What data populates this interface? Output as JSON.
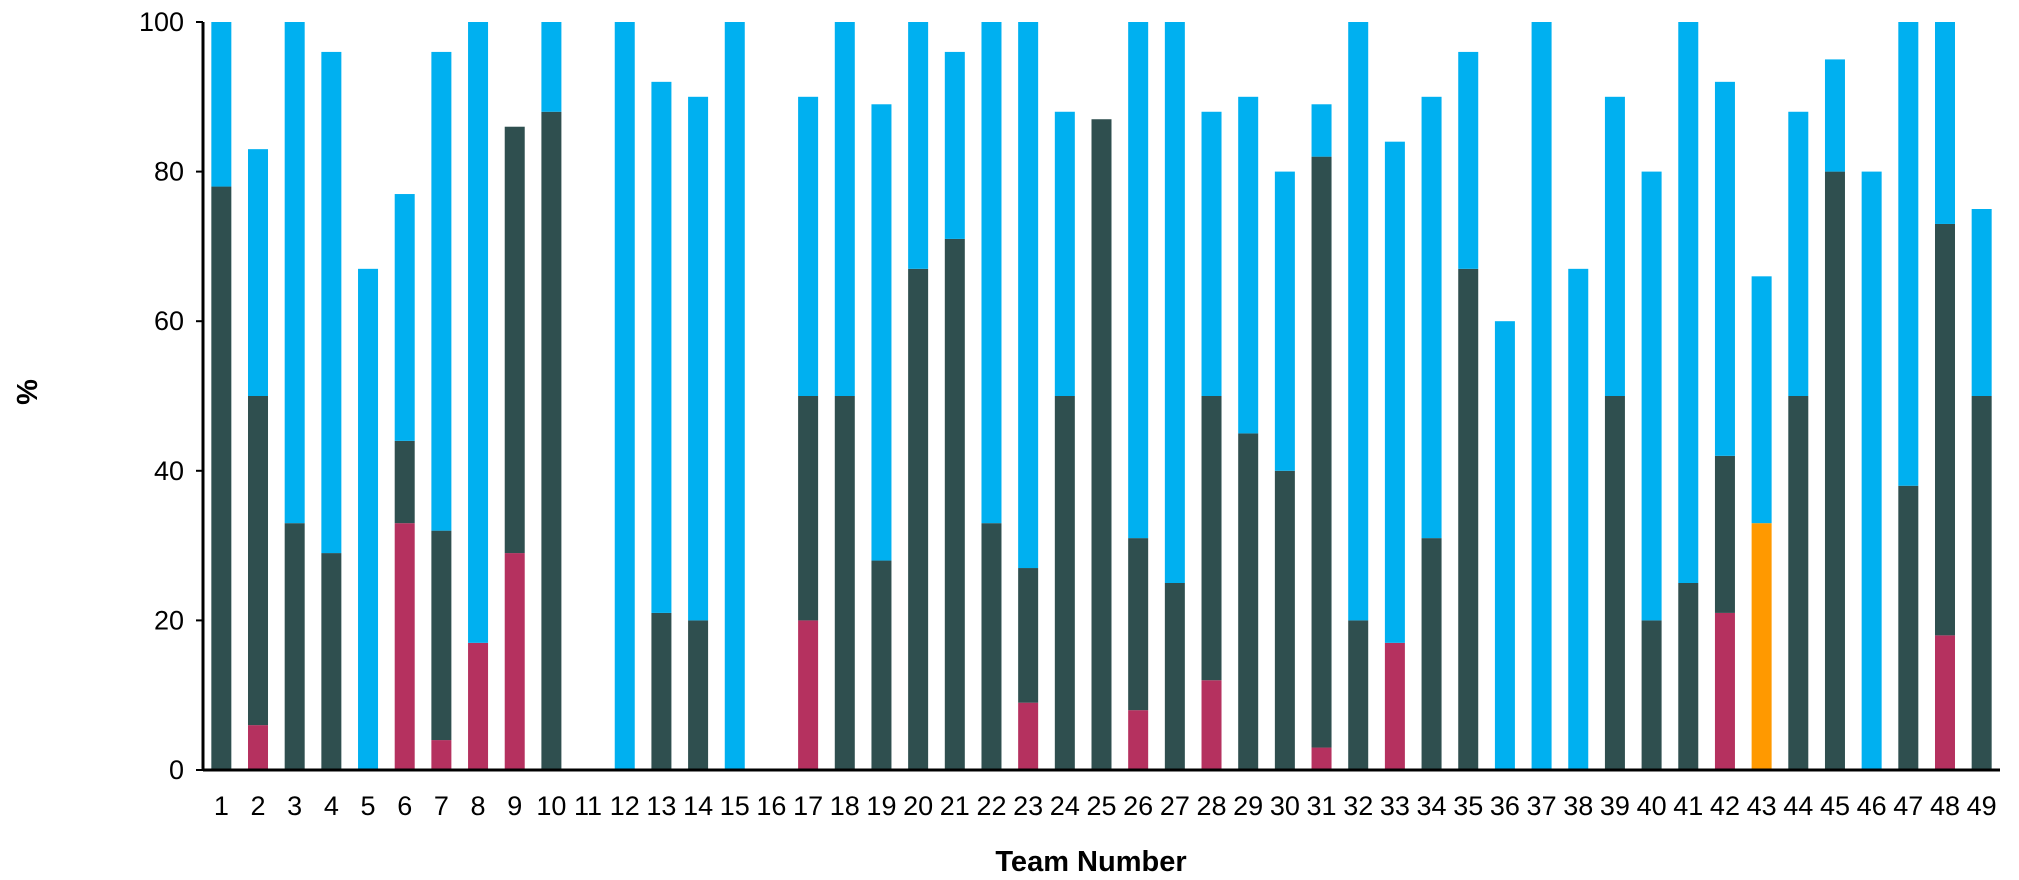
{
  "chart_data": {
    "type": "bar",
    "stacked": true,
    "xlabel": "Team Number",
    "ylabel": "%",
    "ylim": [
      0,
      100
    ],
    "yticks": [
      0,
      20,
      40,
      60,
      80,
      100
    ],
    "grid": false,
    "legend": "none",
    "categories": [
      "1",
      "2",
      "3",
      "4",
      "5",
      "6",
      "7",
      "8",
      "9",
      "10",
      "11",
      "12",
      "13",
      "14",
      "15",
      "16",
      "17",
      "18",
      "19",
      "20",
      "21",
      "22",
      "23",
      "24",
      "25",
      "26",
      "27",
      "28",
      "29",
      "30",
      "31",
      "32",
      "33",
      "34",
      "35",
      "36",
      "37",
      "38",
      "39",
      "40",
      "41",
      "42",
      "43",
      "44",
      "45",
      "46",
      "47",
      "48",
      "49"
    ],
    "series": [
      {
        "color": "#B5315F",
        "values": [
          0,
          6,
          0,
          0,
          0,
          33,
          4,
          17,
          29,
          0,
          0,
          0,
          0,
          0,
          0,
          0,
          20,
          0,
          0,
          0,
          0,
          0,
          9,
          0,
          0,
          8,
          0,
          12,
          0,
          0,
          3,
          0,
          17,
          0,
          0,
          0,
          0,
          0,
          0,
          0,
          0,
          21,
          0,
          0,
          0,
          0,
          0,
          18,
          0
        ]
      },
      {
        "color": "#FF9900",
        "values": [
          0,
          0,
          0,
          0,
          0,
          0,
          0,
          0,
          0,
          0,
          0,
          0,
          0,
          0,
          0,
          0,
          0,
          0,
          0,
          0,
          0,
          0,
          0,
          0,
          0,
          0,
          0,
          0,
          0,
          0,
          0,
          0,
          0,
          0,
          0,
          0,
          0,
          0,
          0,
          0,
          0,
          0,
          33,
          0,
          0,
          0,
          0,
          0,
          0
        ]
      },
      {
        "color": "#2F4F4F",
        "values": [
          78,
          44,
          33,
          29,
          0,
          11,
          28,
          0,
          57,
          88,
          0,
          0,
          21,
          20,
          0,
          0,
          30,
          50,
          28,
          67,
          71,
          33,
          18,
          50,
          87,
          23,
          25,
          38,
          45,
          40,
          79,
          20,
          0,
          31,
          67,
          0,
          0,
          0,
          50,
          20,
          25,
          21,
          0,
          50,
          80,
          0,
          38,
          55,
          50
        ]
      },
      {
        "color": "#00B0F0",
        "values": [
          22,
          33,
          67,
          67,
          67,
          33,
          64,
          83,
          0,
          12,
          0,
          100,
          71,
          70,
          100,
          0,
          40,
          50,
          61,
          33,
          25,
          67,
          73,
          38,
          0,
          69,
          75,
          38,
          45,
          40,
          7,
          80,
          67,
          59,
          29,
          60,
          100,
          67,
          40,
          60,
          75,
          50,
          33,
          38,
          15,
          80,
          62,
          27,
          25
        ]
      }
    ]
  },
  "axis_color": "#000000"
}
